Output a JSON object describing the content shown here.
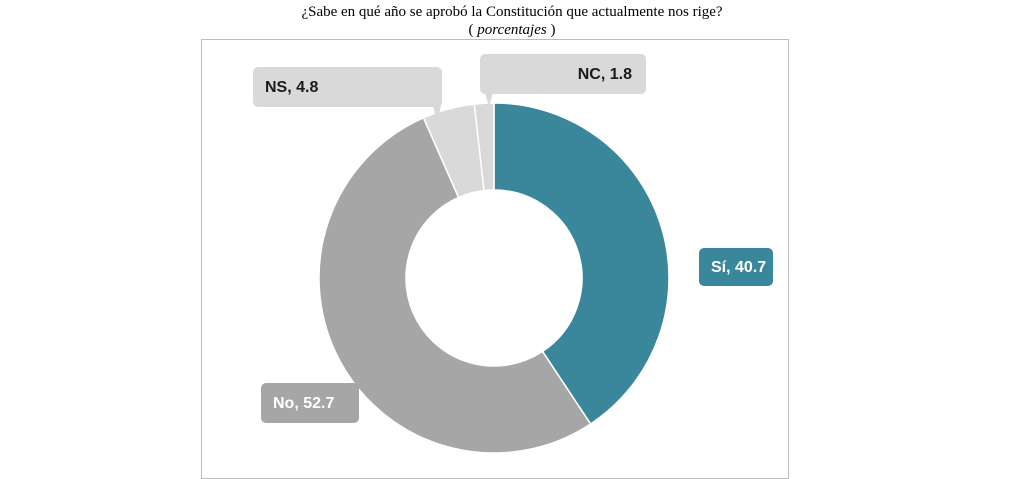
{
  "title": {
    "line1": "¿Sabe en qué año se aprobó la Constitución que actualmente nos rige?",
    "line2_open": "( ",
    "line2_italic": "porcentajes",
    "line2_close": " )"
  },
  "chart_data": {
    "type": "pie",
    "subtype": "donut",
    "title": "¿Sabe en qué año se aprobó la Constitución que actualmente nos rige?",
    "subtitle": "( porcentajes )",
    "slices": [
      {
        "label": "Sí",
        "value": 40.7,
        "color": "#3a879b",
        "text": "Sí, 40.7",
        "text_color": "#ffffff"
      },
      {
        "label": "No",
        "value": 52.7,
        "color": "#a6a6a6",
        "text": "No, 52.7",
        "text_color": "#ffffff"
      },
      {
        "label": "NS",
        "value": 4.8,
        "color": "#d9d9d9",
        "text": "NS, 4.8",
        "text_color": "#1a1a1a"
      },
      {
        "label": "NC",
        "value": 1.8,
        "color": "#d9d9d9",
        "text": "NC, 1.8",
        "text_color": "#1a1a1a"
      }
    ],
    "legend": "none"
  }
}
